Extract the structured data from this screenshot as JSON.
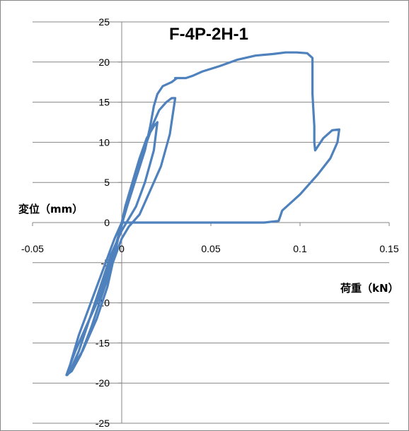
{
  "chart_data": {
    "type": "line",
    "title": "F-4P-2H-1",
    "xlabel": "荷重（kN）",
    "ylabel": "変位（mm）",
    "xlim": [
      -0.05,
      0.15
    ],
    "ylim": [
      -25,
      25
    ],
    "x_ticks": [
      "-0.05",
      "0",
      "0.05",
      "0.1",
      "0.15"
    ],
    "y_ticks": [
      "25",
      "20",
      "15",
      "10",
      "5",
      "0",
      "-5",
      "-10",
      "-15",
      "-20",
      "-25"
    ],
    "grid": "horizontal",
    "legend": "none",
    "series_color": "#4f81bd",
    "series": [
      {
        "x": [
          0,
          -0.004,
          -0.009,
          -0.014,
          -0.019,
          -0.024,
          -0.028,
          -0.0305,
          -0.029,
          -0.022,
          -0.014,
          -0.008,
          -0.004,
          -0.001,
          0.002,
          0.006,
          0.01,
          0.014,
          0.018,
          0.02,
          0.018,
          0.013,
          0.008,
          0.004,
          0,
          -0.006,
          -0.012,
          -0.018,
          -0.024,
          -0.029,
          -0.031,
          -0.027,
          -0.02,
          -0.012,
          -0.006,
          -0.002,
          0.001,
          0.004,
          0.009,
          0.014,
          0.018,
          0.021,
          0.025,
          0.028,
          0.03,
          0.027,
          0.022,
          0.016,
          0.01,
          0.004,
          0,
          -0.005,
          -0.011,
          -0.017,
          -0.023,
          -0.028,
          -0.031,
          -0.026,
          -0.018,
          -0.011,
          -0.005,
          -0.001,
          0.003,
          0.008,
          0.013,
          0.016,
          0.018,
          0.02,
          0.023,
          0.028,
          0.031,
          0.03,
          0.032,
          0.036,
          0.04,
          0.045,
          0.055,
          0.065,
          0.075,
          0.085,
          0.092,
          0.098,
          0.104,
          0.107,
          0.107,
          0.1075,
          0.108,
          0.108,
          0.1085,
          0.11,
          0.113,
          0.118,
          0.122,
          0.121,
          0.117,
          0.11,
          0.1,
          0.09,
          0.088,
          0.08,
          0.06,
          0.04,
          0.02,
          0.005,
          0
        ],
        "y": [
          0,
          -2,
          -5,
          -8,
          -11,
          -14,
          -17,
          -19,
          -18.5,
          -16,
          -12,
          -8,
          -4,
          -1,
          2,
          5,
          8,
          10.5,
          12,
          12.5,
          9,
          5,
          2,
          0.5,
          -1,
          -4,
          -8,
          -12,
          -16,
          -18.5,
          -19,
          -16.5,
          -13,
          -9,
          -5,
          -2,
          0.5,
          3,
          6.5,
          10,
          12.5,
          14,
          15,
          15.5,
          15.5,
          11,
          7,
          4,
          1,
          -0.5,
          -2,
          -5,
          -9,
          -13,
          -16.5,
          -18.5,
          -19,
          -16,
          -12,
          -8,
          -4,
          -1,
          2,
          5.5,
          9,
          12,
          14.5,
          16,
          17,
          17.5,
          18,
          18,
          18,
          18,
          18.3,
          18.8,
          19.5,
          20.3,
          20.8,
          21,
          21.2,
          21.2,
          21.1,
          20.5,
          16,
          14,
          12,
          10,
          9,
          9.5,
          10.5,
          11.5,
          11.6,
          10,
          8,
          6,
          3.5,
          1.5,
          0.2,
          0,
          0,
          0,
          0,
          0,
          0
        ]
      }
    ]
  }
}
